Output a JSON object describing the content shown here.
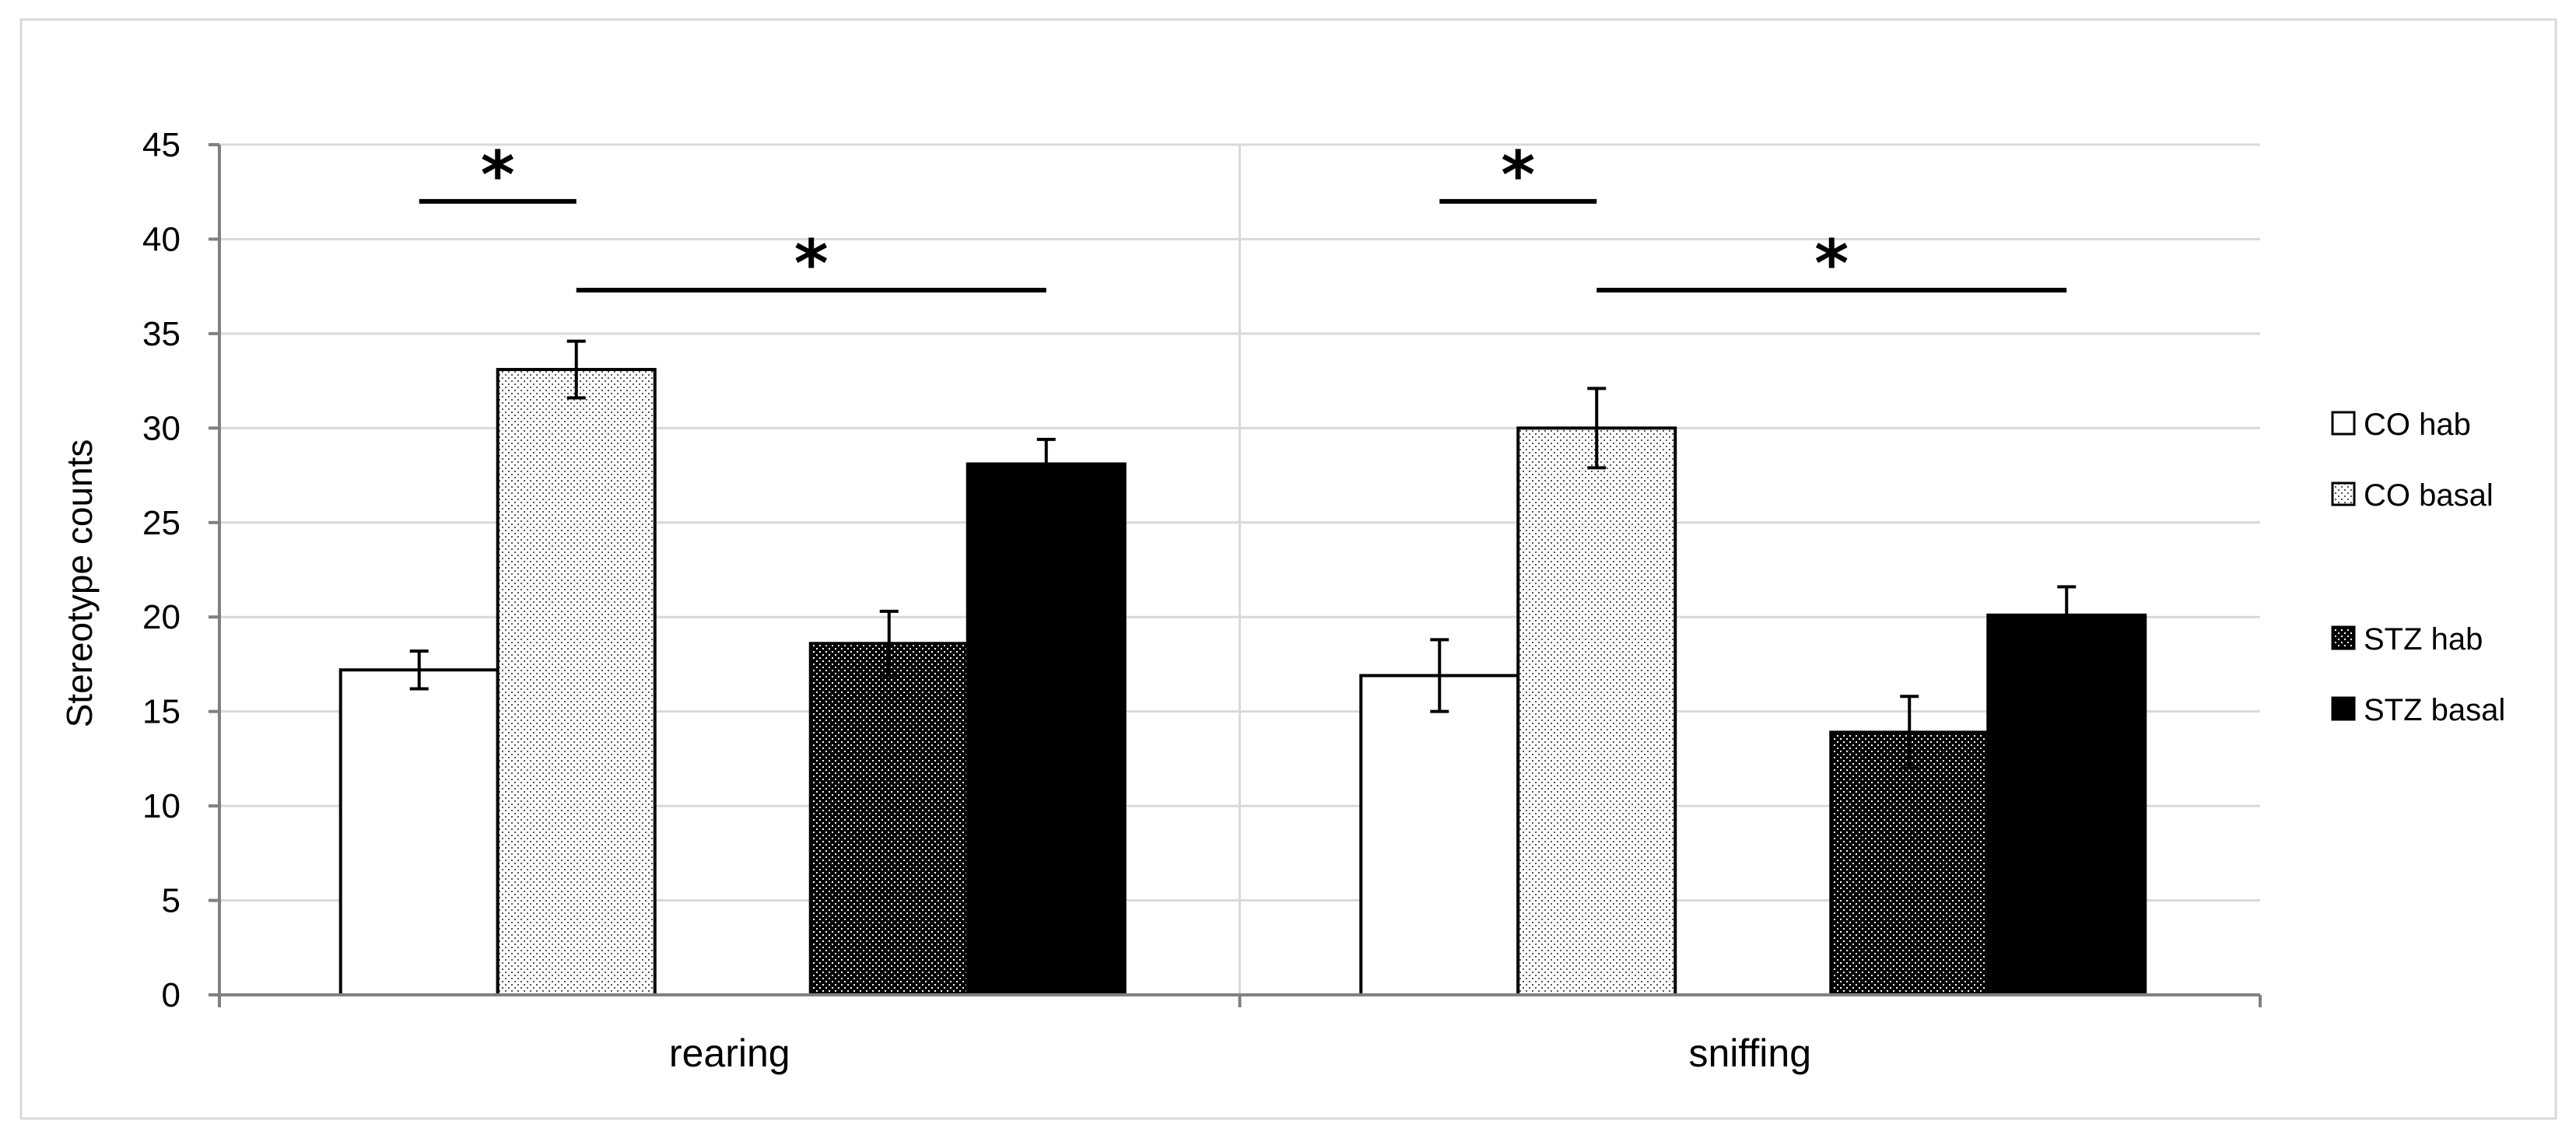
{
  "chart_data": {
    "type": "bar",
    "title": "",
    "xlabel": "",
    "ylabel": "Stereotype counts",
    "ylim": [
      0,
      45
    ],
    "yticks": [
      0,
      5,
      10,
      15,
      20,
      25,
      30,
      35,
      40,
      45
    ],
    "grid": true,
    "legend_position": "right",
    "categories": [
      "rearing",
      "sniffing"
    ],
    "series": [
      {
        "name": "CO hab",
        "pattern": "white",
        "values": [
          17.2,
          16.9
        ],
        "errors": [
          1.0,
          1.9
        ]
      },
      {
        "name": "CO basal",
        "pattern": "light-dots",
        "values": [
          33.1,
          30.0
        ],
        "errors": [
          1.5,
          2.1
        ]
      },
      {
        "name": "STZ hab",
        "pattern": "dark-dots",
        "values": [
          18.6,
          13.9
        ],
        "errors": [
          1.7,
          1.9
        ]
      },
      {
        "name": "STZ basal",
        "pattern": "black",
        "values": [
          28.1,
          20.1
        ],
        "errors": [
          1.3,
          1.5
        ]
      }
    ],
    "significance": [
      {
        "category": 0,
        "from_series": 0,
        "to_series": 1,
        "y": 42,
        "label": "*"
      },
      {
        "category": 0,
        "from_series": 1,
        "to_series": 3,
        "y": 37.3,
        "label": "*"
      },
      {
        "category": 1,
        "from_series": 0,
        "to_series": 1,
        "y": 42,
        "label": "*"
      },
      {
        "category": 1,
        "from_series": 1,
        "to_series": 3,
        "y": 37.3,
        "label": "*"
      }
    ]
  },
  "colors": {
    "white_fill": "#ffffff",
    "light_dot": "#555555",
    "dark_dot": "#ffffff",
    "black_fill": "#000000",
    "grid": "#d9d9d9",
    "axis": "#808080",
    "border": "#d9d9d9"
  }
}
